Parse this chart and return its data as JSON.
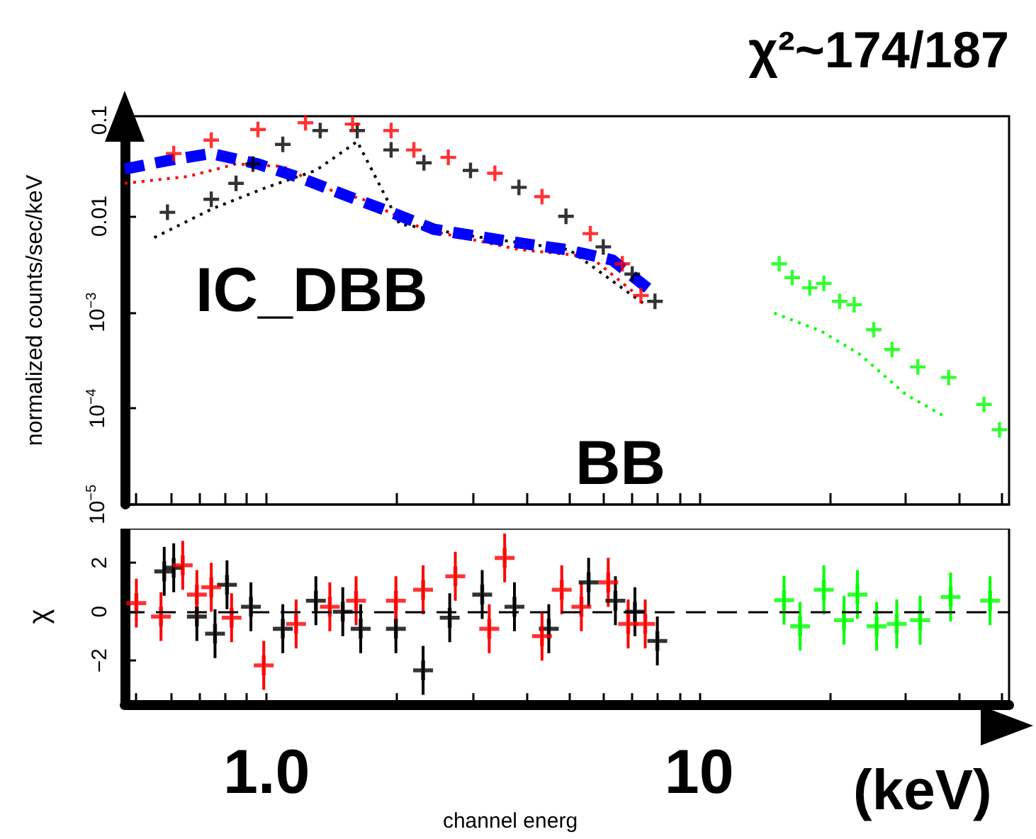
{
  "chart_data": [
    {
      "type": "scatter",
      "title": "χ²~174/187",
      "ylabel": "normalized counts/sec/keV",
      "xlim": [
        0.47,
        52
      ],
      "ylim": [
        1e-05,
        0.11
      ],
      "log": "xy",
      "tick_labels": "y",
      "grid": false,
      "xticks": [
        {
          "value": 0.5,
          "label": null
        },
        {
          "value": 0.6,
          "label": null
        },
        {
          "value": 0.7,
          "label": null
        },
        {
          "value": 0.8,
          "label": null
        },
        {
          "value": 0.9,
          "label": null
        },
        {
          "value": 1,
          "label": null
        },
        {
          "value": 2,
          "label": null
        },
        {
          "value": 3,
          "label": null
        },
        {
          "value": 4,
          "label": null
        },
        {
          "value": 5,
          "label": null
        },
        {
          "value": 6,
          "label": null
        },
        {
          "value": 7,
          "label": null
        },
        {
          "value": 8,
          "label": null
        },
        {
          "value": 9,
          "label": null
        },
        {
          "value": 10,
          "label": null
        },
        {
          "value": 20,
          "label": null
        },
        {
          "value": 30,
          "label": null
        },
        {
          "value": 40,
          "label": null
        },
        {
          "value": 50,
          "label": null
        }
      ],
      "yticks": [
        {
          "value": 1e-05,
          "label": "10$^{−5}$"
        },
        {
          "value": 0.0001,
          "label": "10$^{−4}$"
        },
        {
          "value": 0.001,
          "label": "10$^{−3}$"
        },
        0.01,
        0.1
      ],
      "annotations": [
        "IC_DBB",
        "BB"
      ],
      "series": [
        {
          "marker": "cross",
          "color": "#000000",
          "x": [
            0.59,
            0.745,
            0.85,
            0.93,
            1.09,
            1.33,
            1.62,
            1.94,
            2.31,
            2.96,
            3.83,
            4.92,
            6.0,
            7.0,
            7.9
          ],
          "values": [
            0.011,
            0.015,
            0.022,
            0.035,
            0.056,
            0.078,
            0.078,
            0.049,
            0.036,
            0.03,
            0.02,
            0.01,
            0.0048,
            0.0025,
            0.0013
          ]
        },
        {
          "marker": "cross",
          "color": "#ff0000",
          "x": [
            0.61,
            0.745,
            0.955,
            1.23,
            1.58,
            1.94,
            2.19,
            2.63,
            3.37,
            4.33,
            5.6,
            6.64,
            7.33
          ],
          "values": [
            0.045,
            0.062,
            0.08,
            0.094,
            0.091,
            0.078,
            0.049,
            0.041,
            0.028,
            0.016,
            0.0066,
            0.0032,
            0.0015
          ]
        },
        {
          "marker": "cross",
          "color": "#00ff00",
          "x": [
            15.3,
            16.4,
            18.0,
            19.4,
            21.1,
            22.8,
            25.3,
            27.9,
            32.0,
            37.7,
            45.5,
            49.4
          ],
          "values": [
            0.0032,
            0.0023,
            0.0018,
            0.002,
            0.0013,
            0.0012,
            0.00066,
            0.00041,
            0.00027,
            0.00021,
            0.00011,
            6e-05
          ]
        },
        {
          "type": "line",
          "line_style": "dotted",
          "color": "#000000",
          "x": [
            0.55,
            0.75,
            1.0,
            1.3,
            1.62,
            2.03,
            3.0,
            5.0,
            7.5
          ],
          "values": [
            0.006,
            0.012,
            0.02,
            0.03,
            0.06,
            0.0083,
            0.0062,
            0.0045,
            0.0012
          ]
        },
        {
          "type": "line",
          "line_style": "dotted",
          "color": "#ff0000",
          "x": [
            0.47,
            0.66,
            0.85,
            1.09,
            1.39,
            1.67,
            2.31,
            3.83,
            5.6,
            7.2
          ],
          "values": [
            0.022,
            0.026,
            0.035,
            0.033,
            0.019,
            0.015,
            0.0073,
            0.0045,
            0.0038,
            0.0015
          ]
        },
        {
          "type": "line",
          "line_style": "dotted",
          "color": "#00ff00",
          "x": [
            14.9,
            19.1,
            23.4,
            30.0,
            36.8
          ],
          "values": [
            0.00098,
            0.00064,
            0.00037,
            0.00014,
            8.3e-05
          ]
        },
        {
          "type": "line",
          "line_style": "dashed",
          "color": "#0000ff",
          "x": [
            0.47,
            0.59,
            0.745,
            0.955,
            1.2,
            1.55,
            1.94,
            2.44,
            3.06,
            3.92,
            4.92,
            6.3,
            7.7
          ],
          "values": [
            0.031,
            0.038,
            0.045,
            0.035,
            0.025,
            0.016,
            0.011,
            0.0073,
            0.0062,
            0.0052,
            0.0045,
            0.0035,
            0.0017
          ]
        }
      ]
    },
    {
      "type": "scatter",
      "xlabel": "channel energ",
      "ylabel": "χ",
      "xlim": [
        0.47,
        52
      ],
      "ylim": [
        -3.8,
        3.4
      ],
      "log": "x",
      "grid": false,
      "xticks": [
        {
          "value": 0.5,
          "label": null
        },
        {
          "value": 0.6,
          "label": null
        },
        {
          "value": 0.7,
          "label": null
        },
        {
          "value": 0.8,
          "label": null
        },
        {
          "value": 0.9,
          "label": null
        },
        {
          "value": 1,
          "label": "1.0"
        },
        {
          "value": 2,
          "label": null
        },
        {
          "value": 3,
          "label": null
        },
        {
          "value": 4,
          "label": null
        },
        {
          "value": 5,
          "label": null
        },
        {
          "value": 6,
          "label": null
        },
        {
          "value": 7,
          "label": null
        },
        {
          "value": 8,
          "label": null
        },
        {
          "value": 9,
          "label": null
        },
        10,
        {
          "value": 20,
          "label": null
        },
        {
          "value": 30,
          "label": null
        },
        {
          "value": 40,
          "label": null
        },
        {
          "value": 50,
          "label": null
        }
      ],
      "yticks": [
        {
          "value": -2,
          "label": "−2"
        },
        0,
        2
      ],
      "annotations": [
        "(keV)"
      ],
      "ref_lines": [
        {
          "axis": "y",
          "value": 0,
          "color": "#000000",
          "line_style": "dashed"
        }
      ],
      "series": [
        {
          "marker": "cross",
          "color": "#000000",
          "x": [
            0.58,
            0.61,
            0.69,
            0.76,
            0.81,
            0.92,
            1.09,
            1.3,
            1.5,
            1.65,
            1.99,
            2.3,
            2.65,
            3.15,
            3.74,
            4.49,
            5.55,
            6.4,
            7.1,
            8.0
          ],
          "values": [
            1.65,
            1.8,
            -0.2,
            -0.9,
            1.1,
            0.2,
            -0.7,
            0.45,
            0,
            -0.7,
            -0.7,
            -2.4,
            -0.25,
            0.7,
            0.2,
            -0.7,
            1.2,
            0.45,
            0,
            -1.2
          ],
          "errors": [
            1,
            1,
            1,
            1,
            1,
            1,
            1,
            1,
            1,
            1,
            1,
            1,
            1,
            1,
            1,
            1,
            1,
            1,
            1,
            1
          ]
        },
        {
          "marker": "cross",
          "color": "#ff0000",
          "x": [
            0.5,
            0.57,
            0.64,
            0.69,
            0.745,
            0.83,
            0.985,
            1.17,
            1.4,
            1.61,
            1.99,
            2.3,
            2.73,
            3.27,
            3.55,
            4.33,
            4.81,
            5.34,
            6.16,
            6.85,
            7.5
          ],
          "values": [
            0.35,
            -0.2,
            1.9,
            0.7,
            1.0,
            -0.25,
            -2.2,
            -0.5,
            0.2,
            0.45,
            0.45,
            0.9,
            1.45,
            -0.7,
            2.2,
            -1.0,
            0.9,
            0.2,
            1.2,
            -0.5,
            -0.5
          ],
          "errors": [
            1,
            1,
            1,
            1,
            1,
            1,
            1,
            1,
            1,
            1,
            1,
            1,
            1,
            1,
            1,
            1,
            1,
            1,
            1,
            1,
            1
          ]
        },
        {
          "marker": "cross",
          "color": "#00ff00",
          "x": [
            15.7,
            17.1,
            19.4,
            21.6,
            23.2,
            25.7,
            28.6,
            32.4,
            38.1,
            47.0
          ],
          "values": [
            0.47,
            -0.6,
            0.9,
            -0.35,
            0.7,
            -0.6,
            -0.5,
            -0.35,
            0.6,
            0.45
          ],
          "errors": [
            1,
            1,
            1,
            1,
            1,
            1,
            1,
            1,
            1,
            1
          ]
        }
      ]
    }
  ]
}
